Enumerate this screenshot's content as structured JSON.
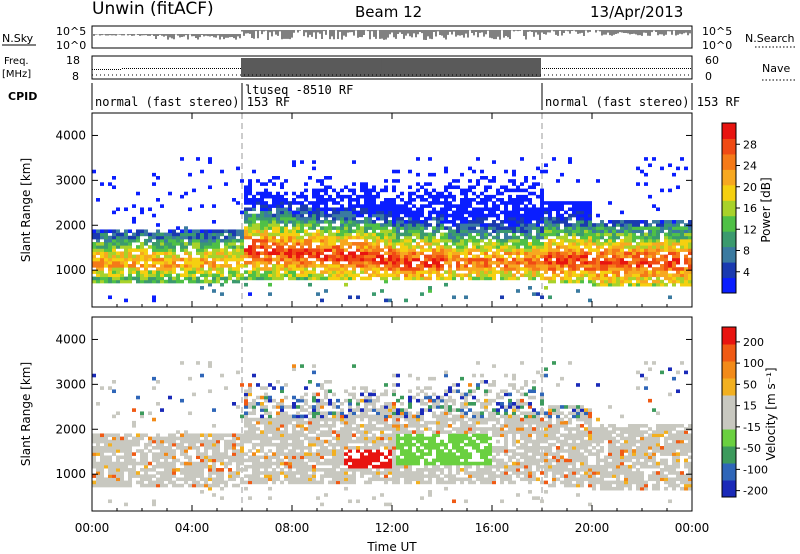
{
  "header": {
    "station": "Unwin (fitACF)",
    "beam": "Beam 12",
    "date": "13/Apr/2013"
  },
  "chart_data": [
    {
      "type": "line",
      "panel": "noise",
      "ylabel": "N.Sky",
      "y2label": "N.Search",
      "ytick_labels": [
        "10^5",
        "10^0"
      ],
      "y2tick_labels": [
        "10^5",
        "10^0"
      ]
    },
    {
      "type": "line",
      "panel": "frequency",
      "ylabel": "Freq. [MHz]",
      "y2label": "Nave",
      "ytick_labels": [
        "18",
        "8"
      ],
      "y2tick_labels": [
        "60",
        "0"
      ],
      "yrange": [
        8,
        18
      ],
      "y2range": [
        0,
        60
      ]
    },
    {
      "type": "table",
      "panel": "cpid",
      "label": "CPID",
      "segments": [
        {
          "text": "normal (fast stereo) 153 RF",
          "start_hour": 0
        },
        {
          "text": "ltuseq -8510 RF",
          "start_hour": 6
        },
        {
          "text": "normal (fast stereo) 153 RF",
          "start_hour": 18
        }
      ]
    },
    {
      "type": "heatmap",
      "panel": "power",
      "ylabel": "Slant Range [km]",
      "yticks": [
        1000,
        2000,
        3000,
        4000
      ],
      "ylim": [
        180,
        4500
      ],
      "colorbar": {
        "label": "Power [dB]",
        "ticks": [
          "4",
          "8",
          "12",
          "16",
          "20",
          "24",
          "28"
        ],
        "colors": [
          "#0a1eff",
          "#1a3ab0",
          "#3a7aa0",
          "#3b9a6e",
          "#4fc046",
          "#a8d22a",
          "#f5d010",
          "#f7a820",
          "#f57a18",
          "#f04a14",
          "#e81410"
        ]
      }
    },
    {
      "type": "heatmap",
      "panel": "velocity",
      "ylabel": "Slant Range [km]",
      "yticks": [
        1000,
        2000,
        3000,
        4000
      ],
      "ylim": [
        180,
        4500
      ],
      "colorbar": {
        "label": "Velocity [m s⁻¹]",
        "ticks": [
          "200",
          "100",
          "50",
          "15",
          "-15",
          "-50",
          "-100",
          "-200"
        ],
        "colors": [
          "#1a2ab8",
          "#2f66b8",
          "#3c9a5c",
          "#6ad040",
          "#c8c8c0",
          "#c8c8c0",
          "#f2b020",
          "#f28a18",
          "#f05a14",
          "#e81410"
        ]
      }
    }
  ],
  "xaxis": {
    "label": "Time UT",
    "ticks": [
      "00:00",
      "04:00",
      "08:00",
      "12:00",
      "16:00",
      "20:00",
      "00:00"
    ],
    "range_hours": [
      0,
      24
    ]
  }
}
